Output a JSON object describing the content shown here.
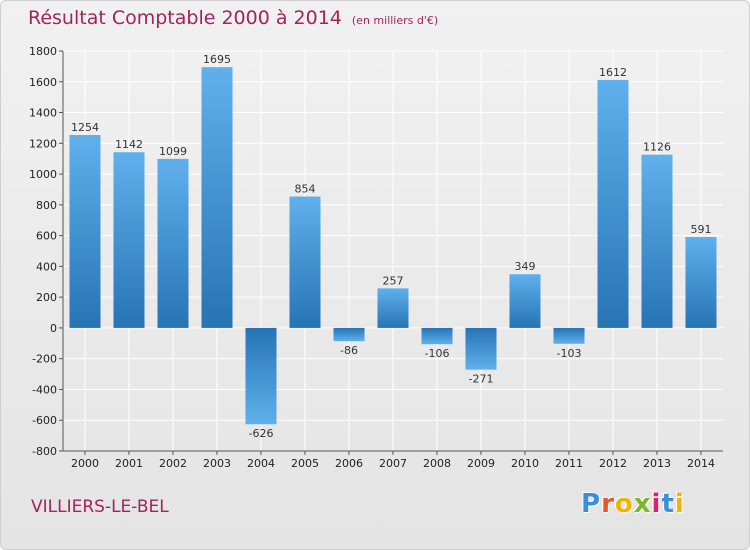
{
  "header": {
    "title": "Résultat Comptable 2000 à 2014",
    "unit": "(en milliers d'€)"
  },
  "footer": {
    "city": "VILLIERS-LE-BEL",
    "logo_letters": [
      "P",
      "r",
      "o",
      "x",
      "i",
      "t",
      "i"
    ],
    "logo_colors": [
      "#3a8fd6",
      "#e8562a",
      "#f0b400",
      "#78b82a",
      "#d6246e",
      "#3a8fd6",
      "#f0b400"
    ]
  },
  "colors": {
    "bar_light": "#5fb0ec",
    "bar_dark": "#2774b5",
    "grid": "#ffffff",
    "axis": "#555555"
  },
  "chart_data": {
    "type": "bar",
    "title": "Résultat Comptable 2000 à 2014",
    "subtitle": "(en milliers d'€)",
    "xlabel": "",
    "ylabel": "",
    "categories": [
      "2000",
      "2001",
      "2002",
      "2003",
      "2004",
      "2005",
      "2006",
      "2007",
      "2008",
      "2009",
      "2010",
      "2011",
      "2012",
      "2013",
      "2014"
    ],
    "values": [
      1254,
      1142,
      1099,
      1695,
      -626,
      854,
      -86,
      257,
      -106,
      -271,
      349,
      -103,
      1612,
      1126,
      591
    ],
    "value_labels": [
      "1254",
      "1142",
      "1099",
      "1695",
      "-626",
      "854",
      "-86",
      "257",
      "-106",
      "-271",
      "349",
      "-103",
      "1612",
      "1126",
      "591"
    ],
    "ylim": [
      -800,
      1800
    ],
    "yticks": [
      -800,
      -600,
      -400,
      -200,
      0,
      200,
      400,
      600,
      800,
      1000,
      1200,
      1400,
      1600,
      1800
    ],
    "grid": true,
    "legend": "none"
  }
}
